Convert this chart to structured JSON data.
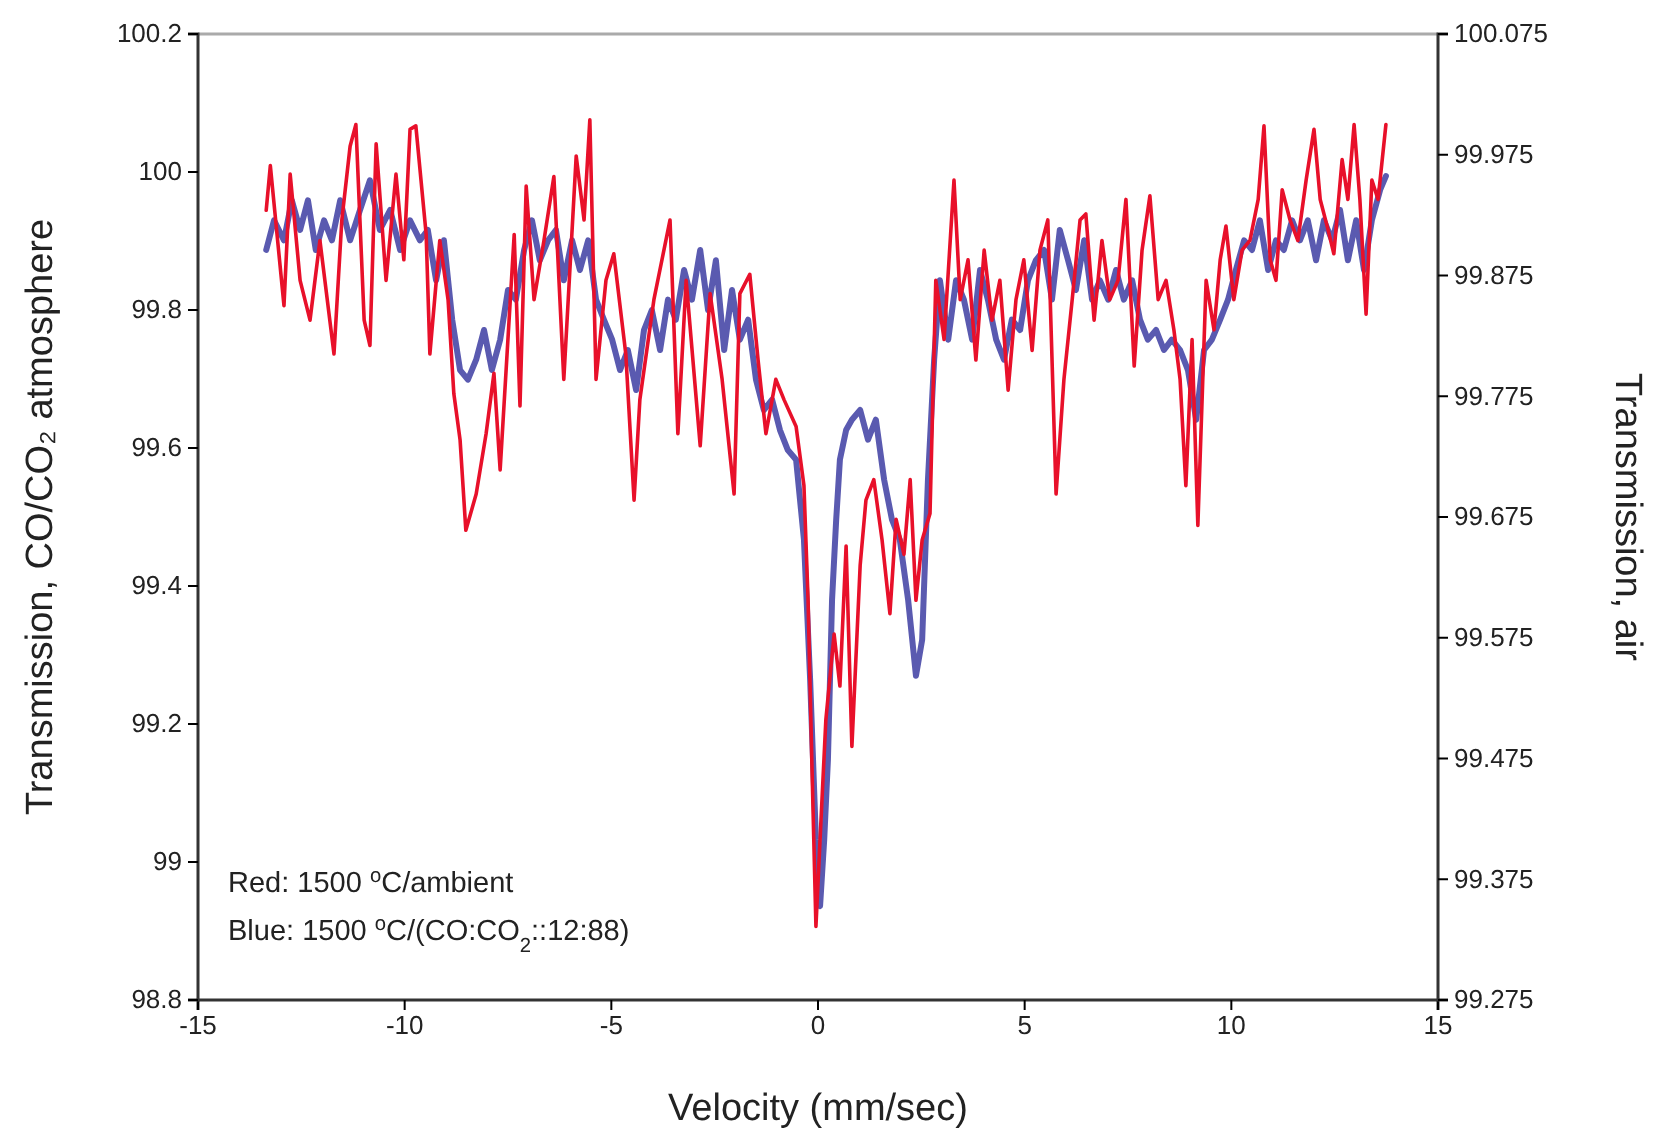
{
  "chart_data": {
    "type": "line",
    "xlabel": "Velocity (mm/sec)",
    "ylabel": "Transmission, CO/CO₂ atmosphere",
    "y2label": "Transmission, air",
    "xlim": [
      -15,
      15
    ],
    "xticks": [
      -15,
      -10,
      -5,
      0,
      5,
      10,
      15
    ],
    "ylim": [
      98.8,
      100.2
    ],
    "yticks": [
      98.8,
      99,
      99.2,
      99.4,
      99.6,
      99.8,
      100,
      100.2
    ],
    "y2lim": [
      99.275,
      100.075
    ],
    "y2ticks": [
      99.275,
      99.375,
      99.475,
      99.575,
      99.675,
      99.775,
      99.875,
      99.975,
      100.075
    ],
    "grid": false,
    "marker": "none",
    "line_style": "solid",
    "annotations": [
      "Red: 1500 $^{o}$C/ambient",
      "Blue: 1500 $^{o}$C/(CO:CO$_{2}$::12:88)"
    ],
    "series": [
      {
        "color": "#5a5ab0",
        "x": [
          -13.35,
          -13.16,
          -12.92,
          -12.73,
          -12.53,
          -12.34,
          -12.15,
          -11.95,
          -11.76,
          -11.56,
          -11.32,
          -11.08,
          -10.84,
          -10.6,
          -10.35,
          -10.11,
          -9.87,
          -9.63,
          -9.44,
          -9.24,
          -9.05,
          -8.85,
          -8.66,
          -8.47,
          -8.27,
          -8.08,
          -7.89,
          -7.69,
          -7.5,
          -7.31,
          -7.11,
          -6.92,
          -6.73,
          -6.53,
          -6.34,
          -6.15,
          -5.95,
          -5.76,
          -5.56,
          -5.37,
          -5.18,
          -4.98,
          -4.79,
          -4.6,
          -4.4,
          -4.21,
          -4.02,
          -3.82,
          -3.63,
          -3.44,
          -3.24,
          -3.05,
          -2.85,
          -2.66,
          -2.47,
          -2.27,
          -2.08,
          -1.89,
          -1.69,
          -1.5,
          -1.31,
          -1.11,
          -0.92,
          -0.73,
          -0.53,
          -0.34,
          -0.19,
          -0.05,
          0.05,
          0.15,
          0.24,
          0.34,
          0.44,
          0.53,
          0.68,
          0.82,
          1.02,
          1.21,
          1.4,
          1.6,
          1.79,
          1.98,
          2.18,
          2.37,
          2.52,
          2.66,
          2.81,
          2.95,
          3.15,
          3.34,
          3.53,
          3.73,
          3.92,
          4.11,
          4.31,
          4.5,
          4.69,
          4.89,
          5.08,
          5.27,
          5.47,
          5.66,
          5.85,
          6.05,
          6.24,
          6.44,
          6.63,
          6.82,
          7.02,
          7.21,
          7.4,
          7.6,
          7.79,
          7.98,
          8.18,
          8.37,
          8.56,
          8.76,
          8.95,
          9.15,
          9.34,
          9.53,
          9.73,
          9.92,
          10.11,
          10.31,
          10.5,
          10.69,
          10.89,
          11.08,
          11.27,
          11.47,
          11.66,
          11.85,
          12.05,
          12.24,
          12.44,
          12.63,
          12.82,
          13.02,
          13.21,
          13.4,
          13.6,
          13.74
        ],
        "values": [
          99.887,
          99.93,
          99.901,
          99.959,
          99.916,
          99.959,
          99.887,
          99.93,
          99.901,
          99.959,
          99.901,
          99.945,
          99.988,
          99.916,
          99.945,
          99.887,
          99.93,
          99.901,
          99.916,
          99.843,
          99.901,
          99.786,
          99.713,
          99.699,
          99.728,
          99.771,
          99.713,
          99.757,
          99.829,
          99.815,
          99.887,
          99.93,
          99.872,
          99.901,
          99.916,
          99.843,
          99.901,
          99.858,
          99.901,
          99.815,
          99.786,
          99.757,
          99.713,
          99.742,
          99.684,
          99.771,
          99.8,
          99.742,
          99.815,
          99.786,
          99.858,
          99.815,
          99.887,
          99.8,
          99.872,
          99.742,
          99.829,
          99.757,
          99.786,
          99.699,
          99.655,
          99.67,
          99.626,
          99.597,
          99.583,
          99.467,
          99.264,
          99.032,
          98.936,
          99.032,
          99.148,
          99.38,
          99.496,
          99.583,
          99.626,
          99.641,
          99.655,
          99.612,
          99.641,
          99.554,
          99.496,
          99.467,
          99.38,
          99.27,
          99.322,
          99.554,
          99.728,
          99.843,
          99.757,
          99.843,
          99.815,
          99.757,
          99.858,
          99.815,
          99.757,
          99.728,
          99.786,
          99.771,
          99.843,
          99.872,
          99.887,
          99.815,
          99.916,
          99.872,
          99.829,
          99.901,
          99.815,
          99.843,
          99.815,
          99.858,
          99.815,
          99.843,
          99.786,
          99.757,
          99.771,
          99.742,
          99.757,
          99.742,
          99.713,
          99.641,
          99.742,
          99.757,
          99.786,
          99.815,
          99.858,
          99.901,
          99.887,
          99.93,
          99.858,
          99.901,
          99.887,
          99.93,
          99.901,
          99.93,
          99.872,
          99.93,
          99.901,
          99.945,
          99.872,
          99.93,
          99.858,
          99.93,
          99.974,
          99.994
        ]
      },
      {
        "color": "#e8102a",
        "axis": "y2",
        "x": [
          -13.35,
          -13.25,
          -12.92,
          -12.77,
          -12.53,
          -12.29,
          -12.05,
          -11.71,
          -11.52,
          -11.32,
          -11.18,
          -10.98,
          -10.84,
          -10.69,
          -10.45,
          -10.21,
          -10.02,
          -9.87,
          -9.73,
          -9.48,
          -9.39,
          -9.15,
          -8.95,
          -8.81,
          -8.66,
          -8.52,
          -8.27,
          -8.03,
          -7.84,
          -7.69,
          -7.35,
          -7.21,
          -7.06,
          -6.87,
          -6.63,
          -6.39,
          -6.15,
          -5.85,
          -5.66,
          -5.52,
          -5.37,
          -5.13,
          -4.94,
          -4.65,
          -4.45,
          -4.31,
          -3.97,
          -3.58,
          -3.39,
          -3.19,
          -2.85,
          -2.61,
          -2.32,
          -2.03,
          -1.89,
          -1.65,
          -1.45,
          -1.26,
          -1.02,
          -0.82,
          -0.53,
          -0.34,
          -0.24,
          -0.15,
          -0.05,
          0.05,
          0.19,
          0.39,
          0.53,
          0.68,
          0.82,
          1.02,
          1.16,
          1.35,
          1.55,
          1.74,
          1.89,
          2.08,
          2.23,
          2.37,
          2.52,
          2.71,
          2.85,
          3.05,
          3.29,
          3.44,
          3.63,
          3.82,
          4.02,
          4.21,
          4.4,
          4.6,
          4.79,
          4.98,
          5.18,
          5.37,
          5.56,
          5.76,
          5.95,
          6.15,
          6.34,
          6.48,
          6.68,
          6.87,
          7.06,
          7.26,
          7.45,
          7.65,
          7.84,
          8.03,
          8.23,
          8.42,
          8.61,
          8.76,
          8.9,
          9.05,
          9.19,
          9.39,
          9.58,
          9.73,
          9.87,
          10.06,
          10.26,
          10.45,
          10.65,
          10.79,
          10.94,
          11.08,
          11.23,
          11.42,
          11.61,
          11.81,
          12.0,
          12.15,
          12.34,
          12.48,
          12.68,
          12.82,
          12.97,
          13.11,
          13.26,
          13.4,
          13.55,
          13.74
        ],
        "values": [
          99.929,
          99.966,
          99.85,
          99.959,
          99.871,
          99.838,
          99.904,
          99.81,
          99.921,
          99.982,
          100.0,
          99.838,
          99.817,
          99.984,
          99.871,
          99.959,
          99.888,
          99.996,
          99.999,
          99.909,
          99.81,
          99.904,
          99.855,
          99.777,
          99.739,
          99.664,
          99.694,
          99.744,
          99.794,
          99.714,
          99.909,
          99.767,
          99.949,
          99.855,
          99.904,
          99.957,
          99.789,
          99.974,
          99.921,
          100.004,
          99.789,
          99.871,
          99.893,
          99.81,
          99.689,
          99.772,
          99.855,
          99.921,
          99.744,
          99.871,
          99.734,
          99.86,
          99.789,
          99.694,
          99.86,
          99.876,
          99.805,
          99.744,
          99.789,
          99.772,
          99.75,
          99.701,
          99.606,
          99.474,
          99.336,
          99.408,
          99.507,
          99.578,
          99.535,
          99.651,
          99.485,
          99.635,
          99.689,
          99.706,
          99.656,
          99.595,
          99.673,
          99.644,
          99.706,
          99.606,
          99.656,
          99.678,
          99.871,
          99.822,
          99.954,
          99.855,
          99.888,
          99.805,
          99.896,
          99.838,
          99.871,
          99.78,
          99.855,
          99.888,
          99.813,
          99.896,
          99.921,
          99.694,
          99.789,
          99.855,
          99.921,
          99.926,
          99.838,
          99.904,
          99.855,
          99.871,
          99.938,
          99.8,
          99.896,
          99.941,
          99.855,
          99.871,
          99.83,
          99.789,
          99.701,
          99.822,
          99.668,
          99.871,
          99.83,
          99.888,
          99.916,
          99.855,
          99.896,
          99.904,
          99.938,
          99.999,
          99.888,
          99.871,
          99.946,
          99.921,
          99.904,
          99.954,
          99.996,
          99.938,
          99.913,
          99.893,
          99.971,
          99.938,
          100.0,
          99.938,
          99.843,
          99.954,
          99.938,
          100.0
        ]
      }
    ]
  }
}
